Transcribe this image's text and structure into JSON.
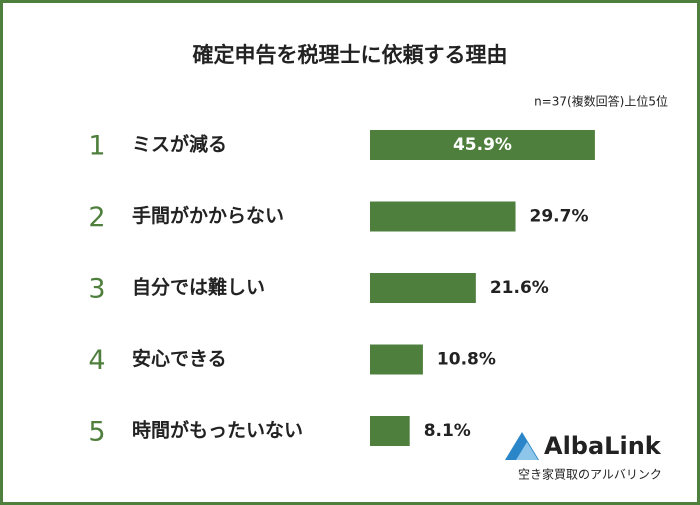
{
  "chart_data": {
    "type": "bar",
    "title": "確定申告を税理士に依頼する理由",
    "subtitle": "n=37(複数回答)上位5位",
    "ranks": [
      "1",
      "2",
      "3",
      "4",
      "5"
    ],
    "categories": [
      "ミスが減る",
      "手間がかからない",
      "自分では難しい",
      "安心できる",
      "時間がもったいない"
    ],
    "values": [
      45.9,
      29.7,
      21.6,
      10.8,
      8.1
    ],
    "value_labels": [
      "45.9%",
      "29.7%",
      "21.6%",
      "10.8%",
      "8.1%"
    ],
    "color": "#4e7f3d",
    "logo": {
      "name": "AlbaLink",
      "tagline": "空き家買取のアルバリンク"
    }
  }
}
